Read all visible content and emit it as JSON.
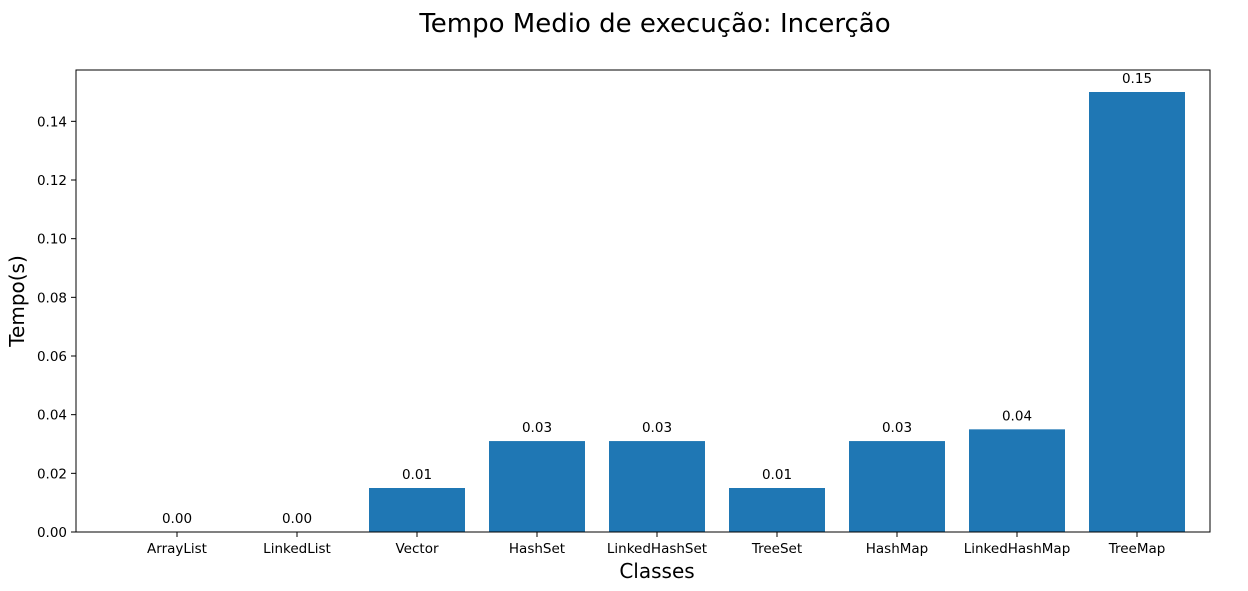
{
  "chart_data": {
    "type": "bar",
    "title": "Tempo Medio de execução: Incerção",
    "xlabel": "Classes",
    "ylabel": "Tempo(s)",
    "categories": [
      "ArrayList",
      "LinkedList",
      "Vector",
      "HashSet",
      "LinkedHashSet",
      "TreeSet",
      "HashMap",
      "LinkedHashMap",
      "TreeMap"
    ],
    "values": [
      0.0,
      0.0,
      0.015,
      0.031,
      0.031,
      0.015,
      0.031,
      0.035,
      0.15
    ],
    "data_labels": [
      "0.00",
      "0.00",
      "0.01",
      "0.03",
      "0.03",
      "0.01",
      "0.03",
      "0.04",
      "0.15"
    ],
    "yticks": [
      0.0,
      0.02,
      0.04,
      0.06,
      0.08,
      0.1,
      0.12,
      0.14
    ],
    "ytick_labels": [
      "0.00",
      "0.02",
      "0.04",
      "0.06",
      "0.08",
      "0.10",
      "0.12",
      "0.14"
    ],
    "ylim": [
      0,
      0.1575
    ],
    "grid": false,
    "legend": "none",
    "bar_color": "#1f77b4"
  }
}
